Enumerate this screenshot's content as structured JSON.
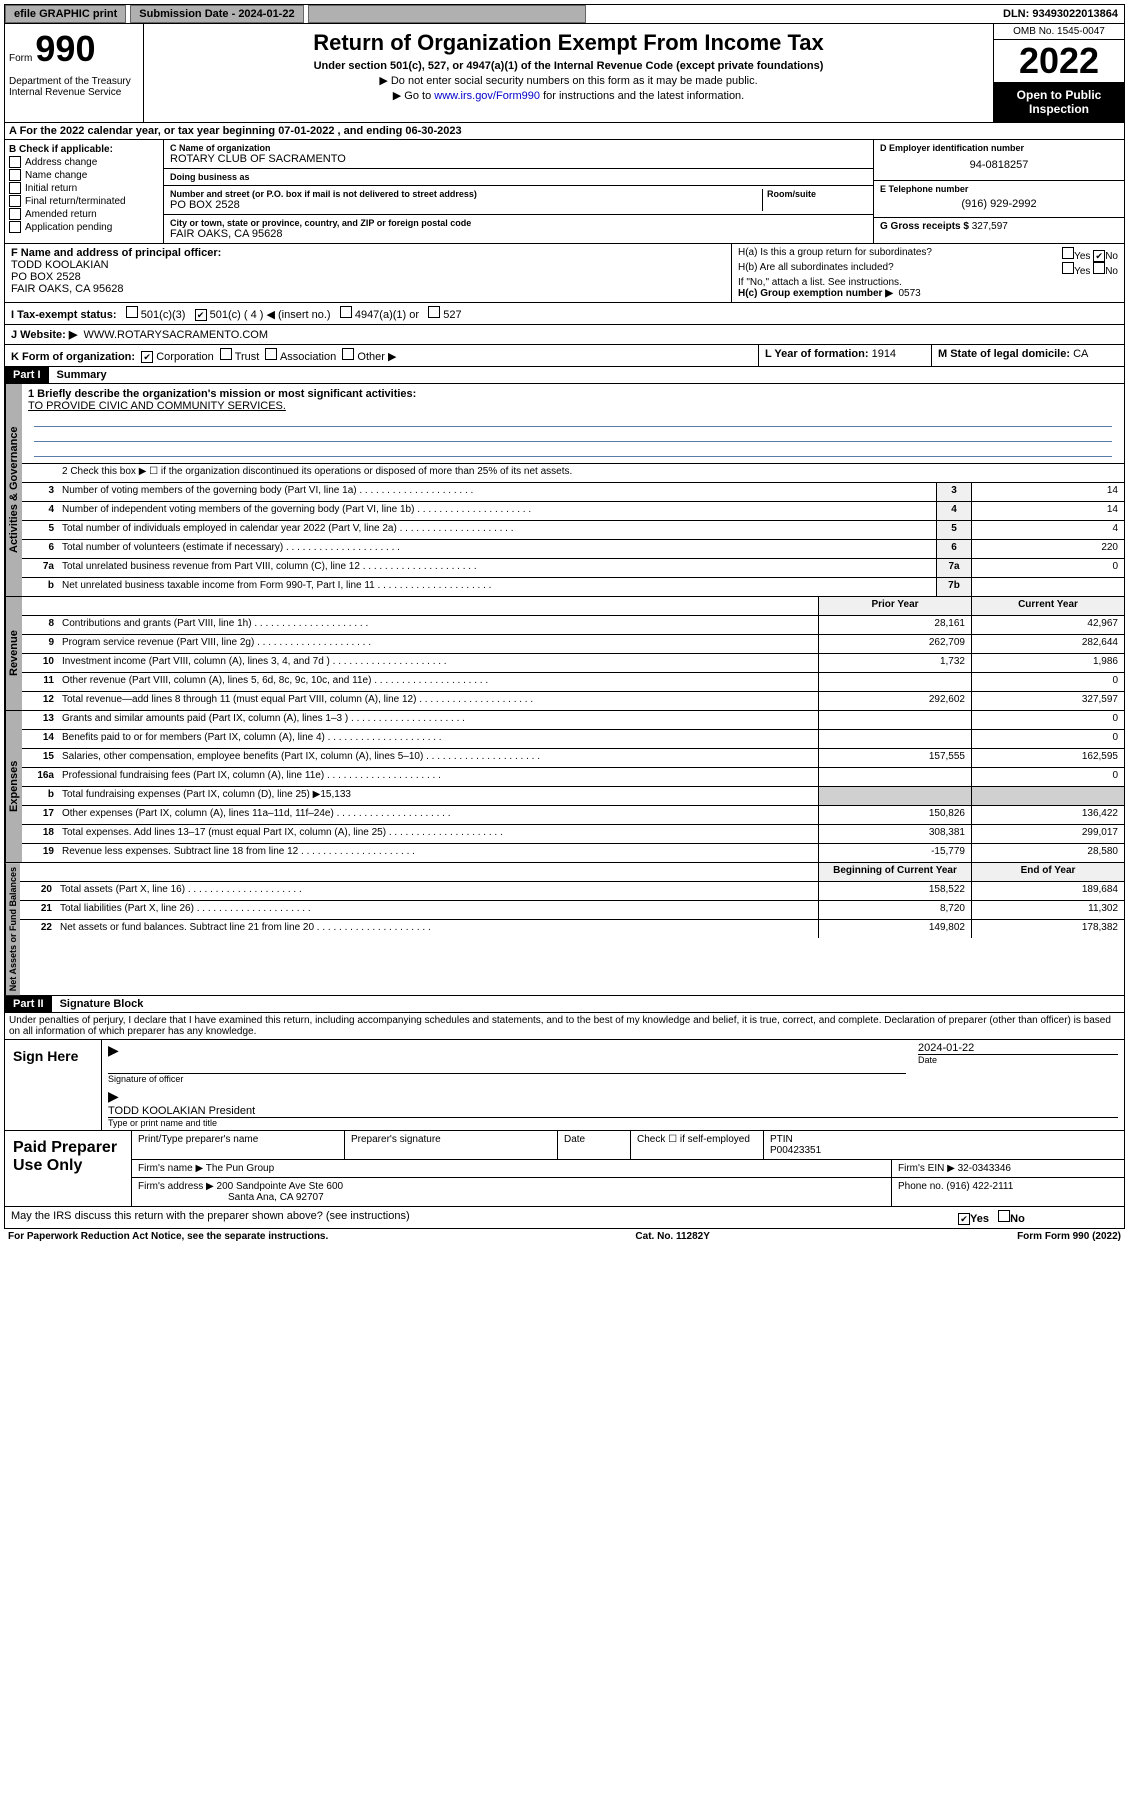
{
  "topbar": {
    "efile": "efile GRAPHIC print",
    "sub_label": "Submission Date - 2024-01-22",
    "dln": "DLN: 93493022013864"
  },
  "header": {
    "form_label": "Form",
    "form_num": "990",
    "dept": "Department of the Treasury\nInternal Revenue Service",
    "title": "Return of Organization Exempt From Income Tax",
    "sub1": "Under section 501(c), 527, or 4947(a)(1) of the Internal Revenue Code (except private foundations)",
    "sub2": "▶ Do not enter social security numbers on this form as it may be made public.",
    "sub3_pre": "▶ Go to ",
    "sub3_link": "www.irs.gov/Form990",
    "sub3_post": " for instructions and the latest information.",
    "omb": "OMB No. 1545-0047",
    "year": "2022",
    "inspect": "Open to Public Inspection"
  },
  "row_a": "A For the 2022 calendar year, or tax year beginning 07-01-2022    , and ending 06-30-2023",
  "col_b": {
    "title": "B Check if applicable:",
    "items": [
      "Address change",
      "Name change",
      "Initial return",
      "Final return/terminated",
      "Amended return",
      "Application pending"
    ]
  },
  "col_c": {
    "name_label": "C Name of organization",
    "name": "ROTARY CLUB OF SACRAMENTO",
    "dba_label": "Doing business as",
    "dba": "",
    "addr_label": "Number and street (or P.O. box if mail is not delivered to street address)",
    "room_label": "Room/suite",
    "addr": "PO BOX 2528",
    "city_label": "City or town, state or province, country, and ZIP or foreign postal code",
    "city": "FAIR OAKS, CA   95628"
  },
  "col_d": {
    "ein_label": "D Employer identification number",
    "ein": "94-0818257",
    "tel_label": "E Telephone number",
    "tel": "(916) 929-2992",
    "gross_label": "G Gross receipts $",
    "gross": "327,597"
  },
  "row_f": {
    "label": "F Name and address of principal officer:",
    "name": "TODD KOOLAKIAN",
    "addr1": "PO BOX 2528",
    "addr2": "FAIR OAKS, CA  95628"
  },
  "row_h": {
    "ha": "H(a)  Is this a group return for subordinates?",
    "ha_no": "No",
    "hb": "H(b)  Are all subordinates included?",
    "hb_note": "If \"No,\" attach a list. See instructions.",
    "hc": "H(c)  Group exemption number ▶",
    "hc_val": "0573"
  },
  "row_i": {
    "label": "I   Tax-exempt status:",
    "opt1": "501(c)(3)",
    "opt2": "501(c) ( 4 ) ◀ (insert no.)",
    "opt3": "4947(a)(1) or",
    "opt4": "527"
  },
  "row_j": {
    "label": "J   Website: ▶",
    "val": "WWW.ROTARYSACRAMENTO.COM"
  },
  "row_k": {
    "label": "K Form of organization:",
    "opts": [
      "Corporation",
      "Trust",
      "Association",
      "Other ▶"
    ],
    "l_label": "L Year of formation:",
    "l_val": "1914",
    "m_label": "M State of legal domicile:",
    "m_val": "CA"
  },
  "part1": {
    "header": "Part I",
    "title": "Summary",
    "line1_label": "1   Briefly describe the organization's mission or most significant activities:",
    "line1_val": "TO PROVIDE CIVIC AND COMMUNITY SERVICES.",
    "line2": "2    Check this box ▶ ☐  if the organization discontinued its operations or disposed of more than 25% of its net assets.",
    "tabs": {
      "gov": "Activities & Governance",
      "rev": "Revenue",
      "exp": "Expenses",
      "net": "Net Assets or Fund Balances"
    },
    "gov_lines": [
      {
        "n": "3",
        "d": "Number of voting members of the governing body (Part VI, line 1a)",
        "b": "3",
        "v": "14"
      },
      {
        "n": "4",
        "d": "Number of independent voting members of the governing body (Part VI, line 1b)",
        "b": "4",
        "v": "14"
      },
      {
        "n": "5",
        "d": "Total number of individuals employed in calendar year 2022 (Part V, line 2a)",
        "b": "5",
        "v": "4"
      },
      {
        "n": "6",
        "d": "Total number of volunteers (estimate if necessary)",
        "b": "6",
        "v": "220"
      },
      {
        "n": "7a",
        "d": "Total unrelated business revenue from Part VIII, column (C), line 12",
        "b": "7a",
        "v": "0"
      },
      {
        "n": "b",
        "d": "Net unrelated business taxable income from Form 990-T, Part I, line 11",
        "b": "7b",
        "v": ""
      }
    ],
    "col_hdr": {
      "prior": "Prior Year",
      "current": "Current Year"
    },
    "rev_lines": [
      {
        "n": "8",
        "d": "Contributions and grants (Part VIII, line 1h)",
        "p": "28,161",
        "c": "42,967"
      },
      {
        "n": "9",
        "d": "Program service revenue (Part VIII, line 2g)",
        "p": "262,709",
        "c": "282,644"
      },
      {
        "n": "10",
        "d": "Investment income (Part VIII, column (A), lines 3, 4, and 7d )",
        "p": "1,732",
        "c": "1,986"
      },
      {
        "n": "11",
        "d": "Other revenue (Part VIII, column (A), lines 5, 6d, 8c, 9c, 10c, and 11e)",
        "p": "",
        "c": "0"
      },
      {
        "n": "12",
        "d": "Total revenue—add lines 8 through 11 (must equal Part VIII, column (A), line 12)",
        "p": "292,602",
        "c": "327,597"
      }
    ],
    "exp_lines": [
      {
        "n": "13",
        "d": "Grants and similar amounts paid (Part IX, column (A), lines 1–3 )",
        "p": "",
        "c": "0"
      },
      {
        "n": "14",
        "d": "Benefits paid to or for members (Part IX, column (A), line 4)",
        "p": "",
        "c": "0"
      },
      {
        "n": "15",
        "d": "Salaries, other compensation, employee benefits (Part IX, column (A), lines 5–10)",
        "p": "157,555",
        "c": "162,595"
      },
      {
        "n": "16a",
        "d": "Professional fundraising fees (Part IX, column (A), line 11e)",
        "p": "",
        "c": "0"
      },
      {
        "n": "b",
        "d": "Total fundraising expenses (Part IX, column (D), line 25) ▶15,133",
        "p": "",
        "c": "",
        "nobox": true
      },
      {
        "n": "17",
        "d": "Other expenses (Part IX, column (A), lines 11a–11d, 11f–24e)",
        "p": "150,826",
        "c": "136,422"
      },
      {
        "n": "18",
        "d": "Total expenses. Add lines 13–17 (must equal Part IX, column (A), line 25)",
        "p": "308,381",
        "c": "299,017"
      },
      {
        "n": "19",
        "d": "Revenue less expenses. Subtract line 18 from line 12",
        "p": "-15,779",
        "c": "28,580"
      }
    ],
    "net_hdr": {
      "begin": "Beginning of Current Year",
      "end": "End of Year"
    },
    "net_lines": [
      {
        "n": "20",
        "d": "Total assets (Part X, line 16)",
        "p": "158,522",
        "c": "189,684"
      },
      {
        "n": "21",
        "d": "Total liabilities (Part X, line 26)",
        "p": "8,720",
        "c": "11,302"
      },
      {
        "n": "22",
        "d": "Net assets or fund balances. Subtract line 21 from line 20",
        "p": "149,802",
        "c": "178,382"
      }
    ]
  },
  "part2": {
    "header": "Part II",
    "title": "Signature Block",
    "decl": "Under penalties of perjury, I declare that I have examined this return, including accompanying schedules and statements, and to the best of my knowledge and belief, it is true, correct, and complete. Declaration of preparer (other than officer) is based on all information of which preparer has any knowledge.",
    "sign": "Sign Here",
    "sig_officer": "Signature of officer",
    "sig_date_label": "Date",
    "sig_date": "2024-01-22",
    "sig_name": "TODD KOOLAKIAN  President",
    "sig_name_label": "Type or print name and title",
    "paid": "Paid Preparer Use Only",
    "prep_name_label": "Print/Type preparer's name",
    "prep_sig_label": "Preparer's signature",
    "prep_date_label": "Date",
    "prep_check": "Check ☐ if self-employed",
    "ptin_label": "PTIN",
    "ptin": "P00423351",
    "firm_name_label": "Firm's name     ▶",
    "firm_name": "The Pun Group",
    "firm_ein_label": "Firm's EIN ▶",
    "firm_ein": "32-0343346",
    "firm_addr_label": "Firm's address ▶",
    "firm_addr1": "200 Sandpointe Ave Ste 600",
    "firm_addr2": "Santa Ana, CA  92707",
    "phone_label": "Phone no.",
    "phone": "(916) 422-2111",
    "discuss": "May the IRS discuss this return with the preparer shown above? (see instructions)",
    "discuss_yes": "Yes",
    "discuss_no": "No"
  },
  "footer": {
    "left": "For Paperwork Reduction Act Notice, see the separate instructions.",
    "mid": "Cat. No. 11282Y",
    "right": "Form 990 (2022)"
  }
}
